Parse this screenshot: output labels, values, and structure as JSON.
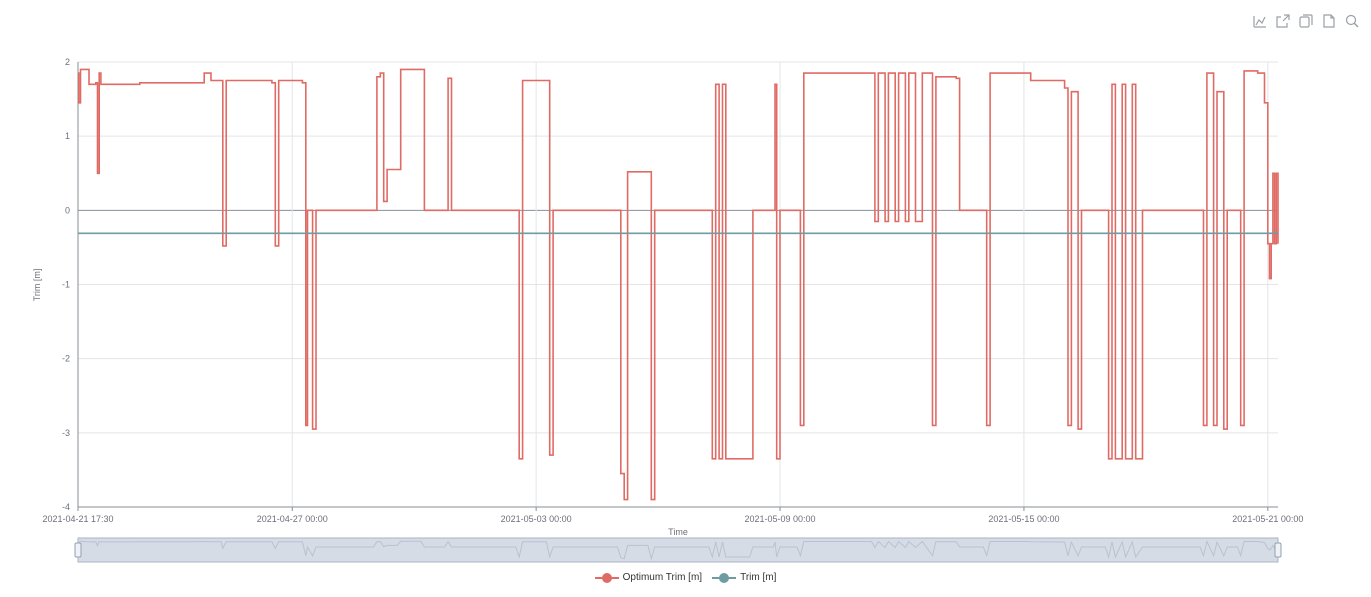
{
  "toolbox": {
    "icons": [
      "line-mode-icon",
      "open-external-icon",
      "copy-icon",
      "document-icon",
      "zoom-icon"
    ]
  },
  "chart_data": {
    "type": "line",
    "title": "",
    "xlabel": "Time",
    "ylabel": "Trim [m]",
    "x_range": [
      "2021-04-21 17:30",
      "2021-05-21 06:00"
    ],
    "ylim": [
      -4,
      2
    ],
    "y_ticks": [
      "2",
      "1",
      "0",
      "-1",
      "-2",
      "-3",
      "-4"
    ],
    "x_ticks": [
      "2021-04-21 17:30",
      "2021-04-27 00:00",
      "2021-05-03 00:00",
      "2021-05-09 00:00",
      "2021-05-15 00:00",
      "2021-05-21 00:00"
    ],
    "grid": true,
    "legend_position": "bottom-center",
    "series": [
      {
        "name": "Optimum Trim [m]",
        "color": "#e06b65",
        "points": [
          [
            "2021-04-21 17:30",
            1.85
          ],
          [
            "2021-04-21 18:00",
            1.45
          ],
          [
            "2021-04-21 19:00",
            1.9
          ],
          [
            "2021-04-22 00:00",
            1.7
          ],
          [
            "2021-04-22 04:00",
            1.72
          ],
          [
            "2021-04-22 05:00",
            0.5
          ],
          [
            "2021-04-22 06:00",
            1.85
          ],
          [
            "2021-04-22 07:00",
            1.7
          ],
          [
            "2021-04-23 06:00",
            1.72
          ],
          [
            "2021-04-24 12:00",
            1.72
          ],
          [
            "2021-04-24 20:00",
            1.85
          ],
          [
            "2021-04-25 00:00",
            1.75
          ],
          [
            "2021-04-25 06:00",
            1.75
          ],
          [
            "2021-04-25 07:00",
            -0.48
          ],
          [
            "2021-04-25 09:00",
            1.75
          ],
          [
            "2021-04-26 12:00",
            1.72
          ],
          [
            "2021-04-26 14:00",
            -0.48
          ],
          [
            "2021-04-26 16:00",
            1.75
          ],
          [
            "2021-04-27 06:00",
            1.72
          ],
          [
            "2021-04-27 08:00",
            -2.9
          ],
          [
            "2021-04-27 09:00",
            0
          ],
          [
            "2021-04-27 12:00",
            -2.95
          ],
          [
            "2021-04-27 14:00",
            0
          ],
          [
            "2021-04-29 00:00",
            0
          ],
          [
            "2021-04-29 02:00",
            1.8
          ],
          [
            "2021-04-29 04:00",
            1.85
          ],
          [
            "2021-04-29 06:00",
            0.12
          ],
          [
            "2021-04-29 08:00",
            0.55
          ],
          [
            "2021-04-29 14:00",
            0.55
          ],
          [
            "2021-04-29 16:00",
            1.9
          ],
          [
            "2021-04-30 04:00",
            1.9
          ],
          [
            "2021-04-30 06:00",
            0
          ],
          [
            "2021-04-30 18:00",
            0
          ],
          [
            "2021-04-30 20:00",
            1.78
          ],
          [
            "2021-04-30 22:00",
            0
          ],
          [
            "2021-05-02 12:00",
            0
          ],
          [
            "2021-05-02 14:00",
            -3.35
          ],
          [
            "2021-05-02 16:00",
            1.75
          ],
          [
            "2021-05-03 06:00",
            1.75
          ],
          [
            "2021-05-03 08:00",
            -3.3
          ],
          [
            "2021-05-03 10:00",
            0
          ],
          [
            "2021-05-05 00:00",
            0
          ],
          [
            "2021-05-05 02:00",
            -3.55
          ],
          [
            "2021-05-05 04:00",
            -3.9
          ],
          [
            "2021-05-05 06:00",
            0.52
          ],
          [
            "2021-05-05 18:00",
            0.52
          ],
          [
            "2021-05-05 20:00",
            -3.9
          ],
          [
            "2021-05-05 22:00",
            0
          ],
          [
            "2021-05-07 06:00",
            0
          ],
          [
            "2021-05-07 08:00",
            -3.35
          ],
          [
            "2021-05-07 10:00",
            1.7
          ],
          [
            "2021-05-07 12:00",
            -3.35
          ],
          [
            "2021-05-07 14:00",
            1.7
          ],
          [
            "2021-05-07 16:00",
            -3.35
          ],
          [
            "2021-05-08 06:00",
            -3.35
          ],
          [
            "2021-05-08 08:00",
            0
          ],
          [
            "2021-05-08 20:00",
            0
          ],
          [
            "2021-05-08 21:00",
            1.7
          ],
          [
            "2021-05-08 22:00",
            -3.35
          ],
          [
            "2021-05-09 00:00",
            0
          ],
          [
            "2021-05-09 10:00",
            0
          ],
          [
            "2021-05-09 12:00",
            -2.9
          ],
          [
            "2021-05-09 14:00",
            1.85
          ],
          [
            "2021-05-11 06:00",
            1.85
          ],
          [
            "2021-05-11 08:00",
            -0.15
          ],
          [
            "2021-05-11 10:00",
            1.85
          ],
          [
            "2021-05-11 14:00",
            -0.15
          ],
          [
            "2021-05-11 16:00",
            1.85
          ],
          [
            "2021-05-11 20:00",
            -0.15
          ],
          [
            "2021-05-11 22:00",
            1.85
          ],
          [
            "2021-05-12 02:00",
            -0.15
          ],
          [
            "2021-05-12 04:00",
            1.85
          ],
          [
            "2021-05-12 08:00",
            -0.15
          ],
          [
            "2021-05-12 12:00",
            1.85
          ],
          [
            "2021-05-12 18:00",
            -2.9
          ],
          [
            "2021-05-12 20:00",
            1.8
          ],
          [
            "2021-05-13 08:00",
            1.78
          ],
          [
            "2021-05-13 10:00",
            0
          ],
          [
            "2021-05-14 00:00",
            0
          ],
          [
            "2021-05-14 02:00",
            -2.9
          ],
          [
            "2021-05-14 04:00",
            1.85
          ],
          [
            "2021-05-15 02:00",
            1.85
          ],
          [
            "2021-05-15 04:00",
            1.75
          ],
          [
            "2021-05-16 00:00",
            1.65
          ],
          [
            "2021-05-16 02:00",
            -2.9
          ],
          [
            "2021-05-16 04:00",
            1.6
          ],
          [
            "2021-05-16 08:00",
            -2.95
          ],
          [
            "2021-05-16 10:00",
            0
          ],
          [
            "2021-05-17 00:00",
            0
          ],
          [
            "2021-05-17 02:00",
            -3.35
          ],
          [
            "2021-05-17 04:00",
            1.7
          ],
          [
            "2021-05-17 06:00",
            -3.35
          ],
          [
            "2021-05-17 10:00",
            1.7
          ],
          [
            "2021-05-17 12:00",
            -3.35
          ],
          [
            "2021-05-17 16:00",
            1.7
          ],
          [
            "2021-05-17 18:00",
            -3.35
          ],
          [
            "2021-05-17 22:00",
            0
          ],
          [
            "2021-05-19 08:00",
            0
          ],
          [
            "2021-05-19 10:00",
            -2.9
          ],
          [
            "2021-05-19 12:00",
            1.85
          ],
          [
            "2021-05-19 16:00",
            -2.9
          ],
          [
            "2021-05-19 18:00",
            1.6
          ],
          [
            "2021-05-19 22:00",
            -2.95
          ],
          [
            "2021-05-20 00:00",
            0
          ],
          [
            "2021-05-20 06:00",
            0
          ],
          [
            "2021-05-20 08:00",
            -2.9
          ],
          [
            "2021-05-20 10:00",
            1.88
          ],
          [
            "2021-05-20 18:00",
            1.85
          ],
          [
            "2021-05-20 22:00",
            1.45
          ],
          [
            "2021-05-21 00:00",
            -0.45
          ],
          [
            "2021-05-21 01:00",
            -0.92
          ],
          [
            "2021-05-21 02:00",
            -0.45
          ],
          [
            "2021-05-21 03:00",
            0.5
          ],
          [
            "2021-05-21 04:00",
            -0.45
          ],
          [
            "2021-05-21 05:00",
            0.5
          ],
          [
            "2021-05-21 06:00",
            -0.45
          ]
        ]
      },
      {
        "name": "Trim [m]",
        "color": "#6e9ca0",
        "points": [
          [
            "2021-04-21 17:30",
            -0.31
          ],
          [
            "2021-05-21 06:00",
            -0.31
          ]
        ]
      }
    ]
  },
  "legend": {
    "items": [
      {
        "label": "Optimum Trim [m]",
        "color": "#e06b65"
      },
      {
        "label": "Trim [m]",
        "color": "#6e9ca0"
      }
    ]
  }
}
